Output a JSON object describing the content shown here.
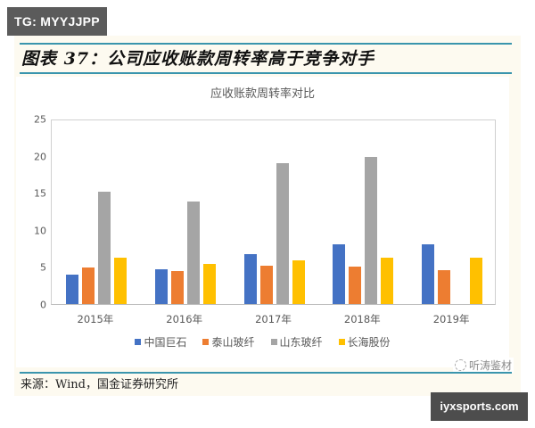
{
  "overlay": {
    "tg_badge": "TG: MYYJJPP",
    "site_badge": "iyxsports.com",
    "watermark": "听涛鉴材"
  },
  "figure": {
    "title": "图表 37：公司应收账款周转率高于竞争对手",
    "source": "来源：Wind，国金证券研究所",
    "rule_color": "#3a95ad",
    "background": "#fdfaf0"
  },
  "chart_data": {
    "type": "bar",
    "title": "应收账款周转率对比",
    "xlabel": "",
    "ylabel": "",
    "ylim": [
      0,
      25
    ],
    "yticks": [
      "0",
      "5",
      "10",
      "15",
      "20",
      "25"
    ],
    "grid": false,
    "legend_position": "bottom",
    "categories": [
      "2015年",
      "2016年",
      "2017年",
      "2018年",
      "2019年"
    ],
    "series": [
      {
        "name": "中国巨石",
        "color": "#4472c4",
        "values": [
          4.0,
          4.7,
          6.7,
          8.0,
          8.0
        ]
      },
      {
        "name": "泰山玻纤",
        "color": "#ed7d31",
        "values": [
          4.9,
          4.5,
          5.2,
          5.1,
          4.6
        ]
      },
      {
        "name": "山东玻纤",
        "color": "#a5a5a5",
        "values": [
          15.1,
          13.8,
          19.0,
          19.8,
          null
        ]
      },
      {
        "name": "长海股份",
        "color": "#ffc000",
        "values": [
          6.3,
          5.4,
          5.9,
          6.3,
          6.3
        ]
      }
    ]
  }
}
